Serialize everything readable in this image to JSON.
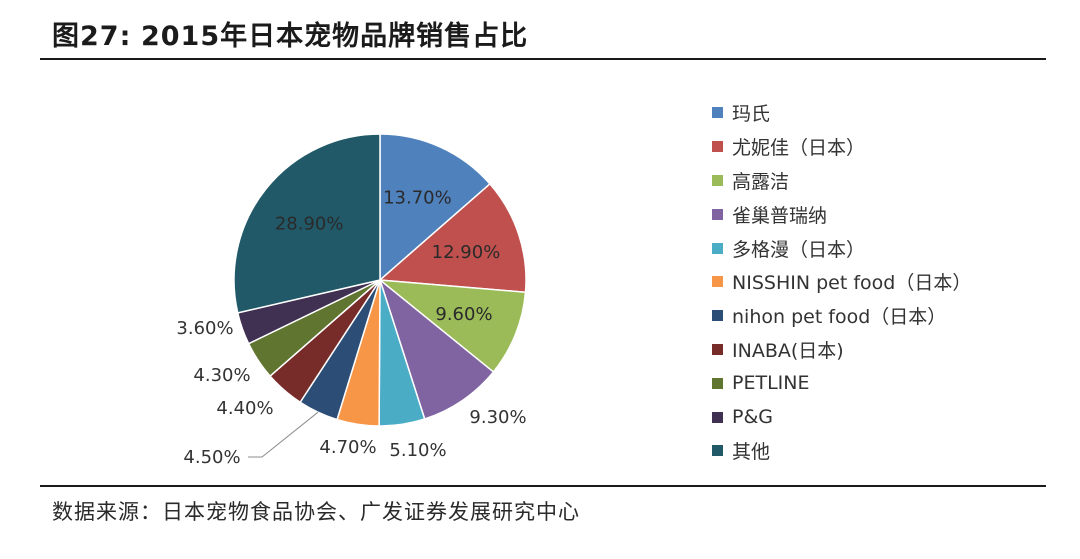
{
  "title": {
    "figure_label": "图27:",
    "text": "2015年日本宠物品牌销售占比"
  },
  "source_text": "数据来源：日本宠物食品协会、广发证券发展研究中心",
  "chart_data": {
    "type": "pie",
    "title": "2015年日本宠物品牌销售占比",
    "legend_position": "right",
    "start_angle_deg": 0,
    "direction": "clockwise",
    "slices": [
      {
        "label": "玛氏",
        "value": 13.7,
        "display": "13.70%",
        "color": "#4F81BD",
        "label_inside": true
      },
      {
        "label": "尤妮佳（日本）",
        "value": 12.9,
        "display": "12.90%",
        "color": "#C0504D",
        "label_inside": true
      },
      {
        "label": "高露洁",
        "value": 9.6,
        "display": "9.60%",
        "color": "#9BBB59",
        "label_inside": true
      },
      {
        "label": "雀巢普瑞纳",
        "value": 9.3,
        "display": "9.30%",
        "color": "#8064A2",
        "label_inside": false
      },
      {
        "label": "多格漫（日本）",
        "value": 5.1,
        "display": "5.10%",
        "color": "#4BACC6",
        "label_inside": false
      },
      {
        "label": "NISSHIN pet food（日本）",
        "value": 4.7,
        "display": "4.70%",
        "color": "#F79646",
        "label_inside": false
      },
      {
        "label": "nihon pet food（日本）",
        "value": 4.5,
        "display": "4.50%",
        "color": "#2C4D75",
        "label_inside": false
      },
      {
        "label": "INABA(日本)",
        "value": 4.4,
        "display": "4.40%",
        "color": "#772C2A",
        "label_inside": false
      },
      {
        "label": "PETLINE",
        "value": 4.3,
        "display": "4.30%",
        "color": "#5F7530",
        "label_inside": false
      },
      {
        "label": "P&G",
        "value": 3.6,
        "display": "3.60%",
        "color": "#403152",
        "label_inside": false
      },
      {
        "label": "其他",
        "value": 28.9,
        "display": "28.90%",
        "color": "#215968",
        "label_inside": true
      }
    ]
  }
}
